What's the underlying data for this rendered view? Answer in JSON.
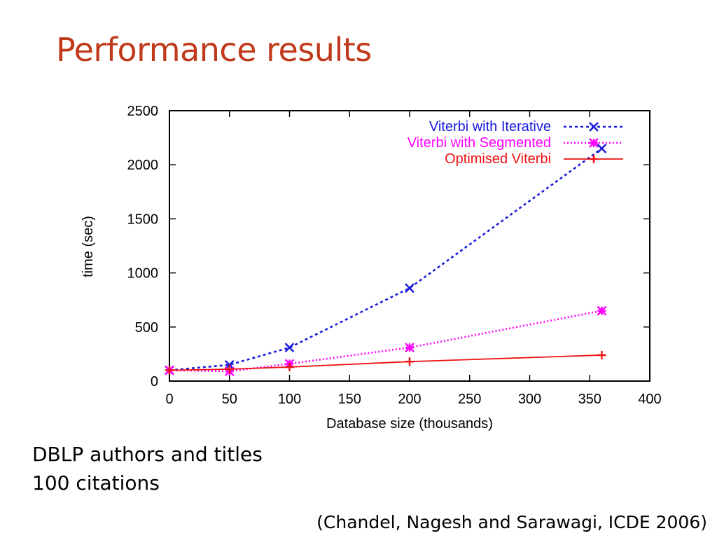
{
  "slide": {
    "title": "Performance results",
    "caption_lines": [
      "DBLP authors and titles",
      "100 citations"
    ],
    "citation": "(Chandel, Nagesh and Sarawagi, ICDE 2006)"
  },
  "colors": {
    "title": "#c0391b",
    "iterative": "#1a1adc",
    "segmented": "#ff00ff",
    "optimised": "#ee1111"
  },
  "chart_data": {
    "type": "line",
    "title": "",
    "xlabel": "Database size (thousands)",
    "ylabel": "time (sec)",
    "xlim": [
      0,
      400
    ],
    "ylim": [
      0,
      2500
    ],
    "xticks": [
      0,
      50,
      100,
      150,
      200,
      250,
      300,
      350,
      400
    ],
    "yticks": [
      0,
      500,
      1000,
      1500,
      2000,
      2500
    ],
    "grid": false,
    "legend_position": "top-right",
    "series": [
      {
        "name": "Viterbi with Iterative",
        "color": "#1a1adc",
        "marker": "x",
        "line_style": "dashed",
        "x": [
          0,
          50,
          100,
          200,
          360
        ],
        "y": [
          100,
          150,
          310,
          860,
          2150
        ]
      },
      {
        "name": "Viterbi with Segmented",
        "color": "#ff00ff",
        "marker": "asterisk",
        "line_style": "dotted",
        "x": [
          0,
          50,
          100,
          200,
          360
        ],
        "y": [
          100,
          90,
          160,
          310,
          650
        ]
      },
      {
        "name": "Optimised Viterbi",
        "color": "#ee1111",
        "marker": "plus",
        "line_style": "solid",
        "x": [
          0,
          50,
          100,
          200,
          360
        ],
        "y": [
          100,
          110,
          130,
          180,
          240
        ]
      }
    ]
  }
}
